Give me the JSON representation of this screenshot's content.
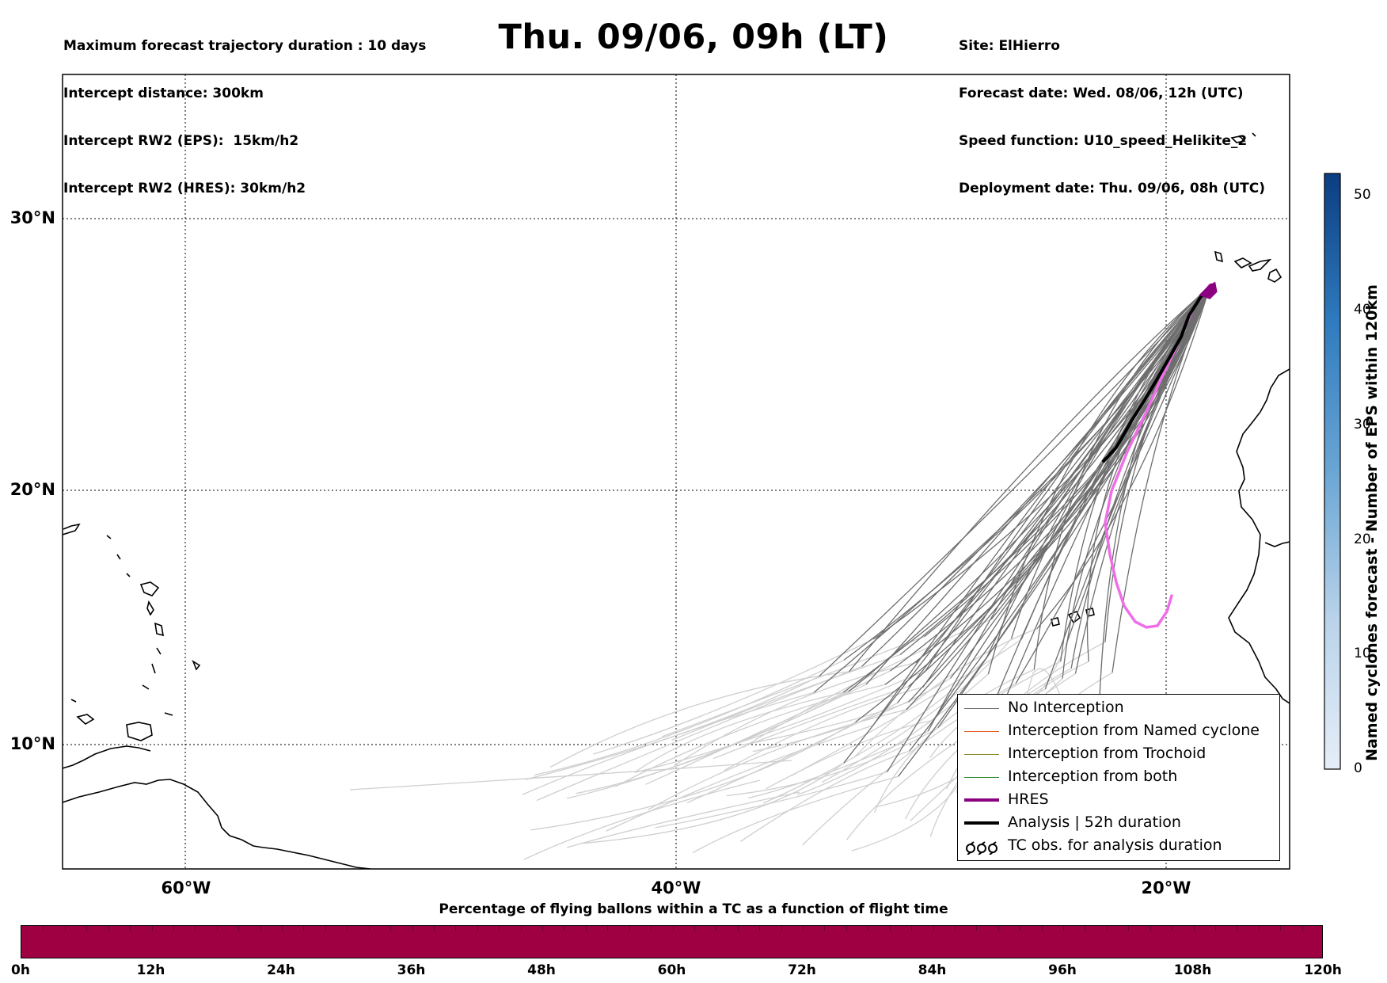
{
  "header": {
    "left_lines": [
      "Maximum forecast trajectory duration : 10 days",
      "Intercept distance: 300km",
      "Intercept RW2 (EPS):  15km/h2",
      "Intercept RW2 (HRES): 30km/h2"
    ],
    "title": "Thu. 09/06, 09h (LT)",
    "right_lines": [
      "Site: ElHierro",
      "Forecast date: Wed. 08/06, 12h (UTC)",
      "Speed function: U10_speed_Helikite_2",
      "Deployment date: Thu. 09/06, 08h (UTC)"
    ]
  },
  "map": {
    "lat_labels": [
      "30°N",
      "20°N",
      "10°N"
    ],
    "lon_labels": [
      "60°W",
      "40°W",
      "20°W"
    ],
    "grid": "dotted",
    "colors": {
      "no_interception": "#6e6e6e",
      "pre_trajectory": "#cfcfcf",
      "hres": "#ee6ee8",
      "hres_legend": "#8b0080",
      "analysis": "#000000",
      "named_cyclone": "#e0602a",
      "trochoid": "#8a8a2a",
      "both": "#2e8b2e"
    }
  },
  "legend": {
    "items": [
      {
        "label": "No Interception",
        "color": "#6e6e6e",
        "width": 1
      },
      {
        "label": "Interception from Named cyclone",
        "color": "#e0602a",
        "width": 1
      },
      {
        "label": "Interception from Trochoid",
        "color": "#8a8a2a",
        "width": 1
      },
      {
        "label": "Interception from both",
        "color": "#2e8b2e",
        "width": 1
      },
      {
        "label": "HRES",
        "color": "#8b0080",
        "width": 4
      },
      {
        "label": "Analysis | 52h duration",
        "color": "#000000",
        "width": 4
      }
    ],
    "tc_obs_label": "TC obs. for analysis duration"
  },
  "colorbar": {
    "title": "Named cyclones forecast - Number of EPS within 120km",
    "ticks": [
      "0",
      "10",
      "20",
      "30",
      "40",
      "50"
    ],
    "max": 52,
    "color_low": "#e6eef8",
    "color_high": "#0b3d82"
  },
  "percentage_bar": {
    "title": "Percentage of flying ballons within a TC as a function of flight time",
    "ticks": [
      "0h",
      "12h",
      "24h",
      "36h",
      "48h",
      "60h",
      "72h",
      "84h",
      "96h",
      "108h",
      "120h"
    ],
    "fill_color": "#9e0041"
  }
}
